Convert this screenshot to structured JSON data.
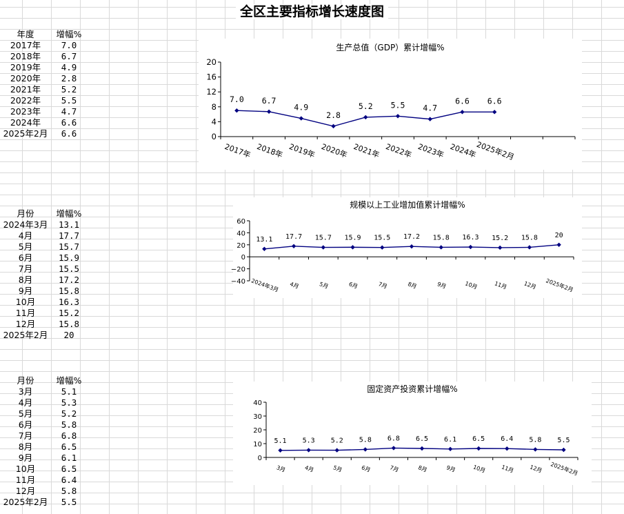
{
  "page": {
    "title": "全区主要指标增长速度图"
  },
  "tables": [
    {
      "header": [
        "年度",
        "增幅%"
      ],
      "rows": [
        [
          "2017年",
          "7.0"
        ],
        [
          "2018年",
          "6.7"
        ],
        [
          "2019年",
          "4.9"
        ],
        [
          "2020年",
          "2.8"
        ],
        [
          "2021年",
          "5.2"
        ],
        [
          "2022年",
          "5.5"
        ],
        [
          "2023年",
          "4.7"
        ],
        [
          "2024年",
          "6.6"
        ],
        [
          "2025年2月",
          "6.6"
        ]
      ]
    },
    {
      "header": [
        "月份",
        "增幅%"
      ],
      "rows": [
        [
          "2024年3月",
          "13.1"
        ],
        [
          "4月",
          "17.7"
        ],
        [
          "5月",
          "15.7"
        ],
        [
          "6月",
          "15.9"
        ],
        [
          "7月",
          "15.5"
        ],
        [
          "8月",
          "17.2"
        ],
        [
          "9月",
          "15.8"
        ],
        [
          "10月",
          "16.3"
        ],
        [
          "11月",
          "15.2"
        ],
        [
          "12月",
          "15.8"
        ],
        [
          "2025年2月",
          "20"
        ]
      ]
    },
    {
      "header": [
        "月份",
        "增幅%"
      ],
      "rows": [
        [
          "3月",
          "5.1"
        ],
        [
          "4月",
          "5.3"
        ],
        [
          "5月",
          "5.2"
        ],
        [
          "6月",
          "5.8"
        ],
        [
          "7月",
          "6.8"
        ],
        [
          "8月",
          "6.5"
        ],
        [
          "9月",
          "6.1"
        ],
        [
          "10月",
          "6.5"
        ],
        [
          "11月",
          "6.4"
        ],
        [
          "12月",
          "5.8"
        ],
        [
          "2025年2月",
          "5.5"
        ]
      ]
    }
  ],
  "chart_data": [
    {
      "type": "line",
      "title": "生产总值（GDP）累计增幅%",
      "categories": [
        "2017年",
        "2018年",
        "2019年",
        "2020年",
        "2021年",
        "2022年",
        "2023年",
        "2024年",
        "2025年2月",
        "",
        ""
      ],
      "values": [
        7.0,
        6.7,
        4.9,
        2.8,
        5.2,
        5.5,
        4.7,
        6.6,
        6.6,
        null,
        null
      ],
      "labels": [
        "7.0",
        "6.7",
        "4.9",
        "2.8",
        "5.2",
        "5.5",
        "4.7",
        "6.6",
        "6.6",
        "",
        ""
      ],
      "ylim": [
        0,
        20
      ],
      "yticks": [
        "0",
        "4",
        "8",
        "12",
        "16",
        "20"
      ],
      "xlabel": "",
      "ylabel": "",
      "grid": false,
      "legend": "none",
      "line_color": "#000080"
    },
    {
      "type": "line",
      "title": "规模以上工业增加值累计增幅%",
      "categories": [
        "2024年3月",
        "4月",
        "5月",
        "6月",
        "7月",
        "8月",
        "9月",
        "10月",
        "11月",
        "12月",
        "2025年2月"
      ],
      "values": [
        13.1,
        17.7,
        15.7,
        15.9,
        15.5,
        17.2,
        15.8,
        16.3,
        15.2,
        15.8,
        20
      ],
      "labels": [
        "13.1",
        "17.7",
        "15.7",
        "15.9",
        "15.5",
        "17.2",
        "15.8",
        "16.3",
        "15.2",
        "15.8",
        "20"
      ],
      "ylim": [
        -40,
        60
      ],
      "yticks": [
        "−40",
        "−20",
        "0",
        "20",
        "40",
        "60"
      ],
      "xlabel": "",
      "ylabel": "",
      "grid": false,
      "legend": "none",
      "line_color": "#000080"
    },
    {
      "type": "line",
      "title": "固定资产投资累计增幅%",
      "categories": [
        "3月",
        "4月",
        "5月",
        "6月",
        "7月",
        "8月",
        "9月",
        "10月",
        "11月",
        "12月",
        "2025年2月"
      ],
      "values": [
        5.1,
        5.3,
        5.2,
        5.8,
        6.8,
        6.5,
        6.1,
        6.5,
        6.4,
        5.8,
        5.5
      ],
      "labels": [
        "5.1",
        "5.3",
        "5.2",
        "5.8",
        "6.8",
        "6.5",
        "6.1",
        "6.5",
        "6.4",
        "5.8",
        "5.5"
      ],
      "ylim": [
        0,
        40
      ],
      "yticks": [
        "0",
        "10",
        "20",
        "30",
        "40"
      ],
      "xlabel": "",
      "ylabel": "",
      "grid": false,
      "legend": "none",
      "line_color": "#000080"
    }
  ]
}
